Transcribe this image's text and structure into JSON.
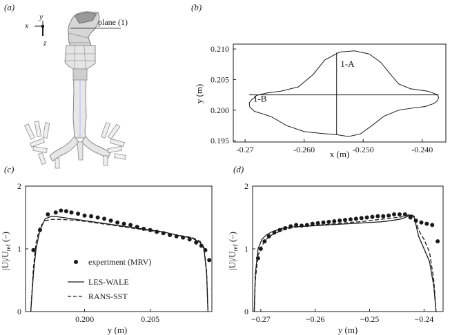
{
  "panel_labels": {
    "a": "(a)",
    "b": "(b)",
    "c": "(c)",
    "d": "(d)"
  },
  "panel_a": {
    "axis_x": "x",
    "axis_y": "y",
    "axis_z": "z",
    "plane_label": "plane (1)"
  },
  "panel_b": {
    "xlabel": "x (m)",
    "ylabel": "y (m)",
    "line_labels": [
      "1-A",
      "1-B"
    ],
    "x_ticks": [
      "-0.27",
      "-0.260",
      "-0.250",
      "-0.240"
    ],
    "y_ticks": [
      "0.210",
      "0.205",
      "0.200",
      "0.195"
    ]
  },
  "ylabel_cd": {
    "main": "|U|/U",
    "sub": "ref",
    "tail": " (–)"
  },
  "legend": {
    "experiment": "experiment (MRV)",
    "les": "LES-WALE",
    "rans": "RANS-SST"
  },
  "chart_data": [
    {
      "type": "line",
      "panel": "(b)",
      "title": "",
      "xlabel": "x (m)",
      "ylabel": "y (m)",
      "xlim": [
        -0.272,
        -0.236
      ],
      "ylim": [
        0.1948,
        0.2108
      ],
      "series": [
        {
          "name": "cross-section outline",
          "points": [
            [
              -0.2685,
              0.202
            ],
            [
              -0.2681,
              0.2024
            ],
            [
              -0.2664,
              0.2028
            ],
            [
              -0.264,
              0.2031
            ],
            [
              -0.261,
              0.2038
            ],
            [
              -0.2585,
              0.2058
            ],
            [
              -0.2565,
              0.2082
            ],
            [
              -0.254,
              0.2095
            ],
            [
              -0.2515,
              0.2097
            ],
            [
              -0.249,
              0.2092
            ],
            [
              -0.247,
              0.2078
            ],
            [
              -0.2455,
              0.206
            ],
            [
              -0.244,
              0.2043
            ],
            [
              -0.242,
              0.2035
            ],
            [
              -0.239,
              0.2031
            ],
            [
              -0.2376,
              0.2026
            ],
            [
              -0.2372,
              0.2021
            ],
            [
              -0.2374,
              0.2016
            ],
            [
              -0.238,
              0.2011
            ],
            [
              -0.2395,
              0.2006
            ],
            [
              -0.242,
              0.2003
            ],
            [
              -0.244,
              0.2
            ],
            [
              -0.2465,
              0.199
            ],
            [
              -0.2485,
              0.1975
            ],
            [
              -0.2505,
              0.1961
            ],
            [
              -0.2525,
              0.1957
            ],
            [
              -0.2545,
              0.196
            ],
            [
              -0.257,
              0.1962
            ],
            [
              -0.26,
              0.1965
            ],
            [
              -0.263,
              0.1975
            ],
            [
              -0.2655,
              0.1989
            ],
            [
              -0.267,
              0.1994
            ],
            [
              -0.2684,
              0.1998
            ],
            [
              -0.2692,
              0.2005
            ],
            [
              -0.2693,
              0.2012
            ],
            [
              -0.2689,
              0.2017
            ],
            [
              -0.2685,
              0.202
            ]
          ]
        },
        {
          "name": "line 1-A",
          "points": [
            [
              -0.2545,
              0.196
            ],
            [
              -0.2545,
              0.2094
            ]
          ]
        },
        {
          "name": "line 1-B",
          "points": [
            [
              -0.2693,
              0.2025
            ],
            [
              -0.2372,
              0.2025
            ]
          ]
        }
      ],
      "x_ticks": [
        -0.27,
        -0.26,
        -0.25,
        -0.24
      ],
      "y_ticks": [
        0.21,
        0.205,
        0.2,
        0.195
      ]
    },
    {
      "type": "line",
      "panel": "(c)",
      "title": "",
      "xlabel": "y (m)",
      "ylabel": "|U|/U_ref (–)",
      "xlim": [
        0.1955,
        0.2097
      ],
      "ylim": [
        0,
        2
      ],
      "x_ticks": [
        0.2,
        0.205
      ],
      "y_ticks": [
        0,
        1,
        2
      ],
      "legend_position": "bottom-left",
      "series": [
        {
          "name": "experiment (MRV)",
          "style": "dots",
          "points": [
            [
              0.1961,
              0.98
            ],
            [
              0.1966,
              1.3
            ],
            [
              0.1972,
              1.55
            ],
            [
              0.1978,
              1.58
            ],
            [
              0.1982,
              1.61
            ],
            [
              0.1986,
              1.6
            ],
            [
              0.199,
              1.58
            ],
            [
              0.1995,
              1.56
            ],
            [
              0.2,
              1.53
            ],
            [
              0.2005,
              1.52
            ],
            [
              0.201,
              1.5
            ],
            [
              0.2015,
              1.48
            ],
            [
              0.202,
              1.45
            ],
            [
              0.2025,
              1.42
            ],
            [
              0.203,
              1.4
            ],
            [
              0.2035,
              1.38
            ],
            [
              0.204,
              1.35
            ],
            [
              0.2045,
              1.32
            ],
            [
              0.205,
              1.3
            ],
            [
              0.2055,
              1.27
            ],
            [
              0.206,
              1.25
            ],
            [
              0.2065,
              1.22
            ],
            [
              0.207,
              1.2
            ],
            [
              0.2075,
              1.18
            ],
            [
              0.208,
              1.15
            ],
            [
              0.2085,
              1.1
            ],
            [
              0.2089,
              1.05
            ],
            [
              0.2092,
              0.98
            ],
            [
              0.2095,
              0.82
            ]
          ]
        },
        {
          "name": "LES-WALE",
          "style": "solid",
          "points": [
            [
              0.1959,
              0
            ],
            [
              0.1961,
              0.6
            ],
            [
              0.1963,
              1.0
            ],
            [
              0.1966,
              1.3
            ],
            [
              0.197,
              1.48
            ],
            [
              0.1975,
              1.52
            ],
            [
              0.198,
              1.51
            ],
            [
              0.199,
              1.48
            ],
            [
              0.2,
              1.45
            ],
            [
              0.201,
              1.42
            ],
            [
              0.202,
              1.39
            ],
            [
              0.203,
              1.36
            ],
            [
              0.204,
              1.33
            ],
            [
              0.205,
              1.3
            ],
            [
              0.206,
              1.27
            ],
            [
              0.207,
              1.22
            ],
            [
              0.2082,
              1.17
            ],
            [
              0.2088,
              1.1
            ],
            [
              0.2091,
              1.0
            ],
            [
              0.2093,
              0.6
            ],
            [
              0.2094,
              0
            ]
          ]
        },
        {
          "name": "RANS-SST",
          "style": "dashed",
          "points": [
            [
              0.1959,
              0
            ],
            [
              0.1961,
              0.7
            ],
            [
              0.1963,
              1.1
            ],
            [
              0.1966,
              1.35
            ],
            [
              0.197,
              1.45
            ],
            [
              0.1975,
              1.47
            ],
            [
              0.198,
              1.47
            ],
            [
              0.199,
              1.46
            ],
            [
              0.2,
              1.44
            ],
            [
              0.201,
              1.41
            ],
            [
              0.202,
              1.38
            ],
            [
              0.203,
              1.35
            ],
            [
              0.204,
              1.32
            ],
            [
              0.205,
              1.29
            ],
            [
              0.206,
              1.26
            ],
            [
              0.207,
              1.22
            ],
            [
              0.2082,
              1.18
            ],
            [
              0.2088,
              1.12
            ],
            [
              0.2091,
              1.02
            ],
            [
              0.2093,
              0.65
            ],
            [
              0.2094,
              0
            ]
          ]
        }
      ]
    },
    {
      "type": "line",
      "panel": "(d)",
      "title": "",
      "xlabel": "y (m)",
      "ylabel": "|U|/U_ref (–)",
      "xlim": [
        -0.2715,
        -0.2365
      ],
      "ylim": [
        0,
        2
      ],
      "x_ticks": [
        -0.27,
        -0.26,
        -0.25,
        -0.24
      ],
      "y_ticks": [
        0,
        1,
        2
      ],
      "series": [
        {
          "name": "experiment (MRV)",
          "style": "dots",
          "points": [
            [
              -0.2705,
              0.85
            ],
            [
              -0.27,
              1.0
            ],
            [
              -0.2693,
              1.12
            ],
            [
              -0.2685,
              1.2
            ],
            [
              -0.2675,
              1.26
            ],
            [
              -0.2665,
              1.3
            ],
            [
              -0.2655,
              1.33
            ],
            [
              -0.2645,
              1.36
            ],
            [
              -0.2635,
              1.38
            ],
            [
              -0.2625,
              1.37
            ],
            [
              -0.2615,
              1.38
            ],
            [
              -0.2605,
              1.4
            ],
            [
              -0.2595,
              1.41
            ],
            [
              -0.2585,
              1.42
            ],
            [
              -0.2575,
              1.43
            ],
            [
              -0.2565,
              1.44
            ],
            [
              -0.2555,
              1.45
            ],
            [
              -0.2545,
              1.46
            ],
            [
              -0.2535,
              1.47
            ],
            [
              -0.2525,
              1.48
            ],
            [
              -0.2515,
              1.49
            ],
            [
              -0.2505,
              1.5
            ],
            [
              -0.2495,
              1.51
            ],
            [
              -0.2485,
              1.52
            ],
            [
              -0.2475,
              1.52
            ],
            [
              -0.2465,
              1.53
            ],
            [
              -0.2455,
              1.55
            ],
            [
              -0.2445,
              1.55
            ],
            [
              -0.2435,
              1.55
            ],
            [
              -0.2425,
              1.5
            ],
            [
              -0.2415,
              1.45
            ],
            [
              -0.2405,
              1.42
            ],
            [
              -0.2395,
              1.4
            ],
            [
              -0.2385,
              1.38
            ],
            [
              -0.2375,
              1.12
            ]
          ]
        },
        {
          "name": "LES-WALE",
          "style": "solid",
          "points": [
            [
              -0.2712,
              0
            ],
            [
              -0.271,
              0.6
            ],
            [
              -0.2705,
              1.0
            ],
            [
              -0.2698,
              1.15
            ],
            [
              -0.269,
              1.22
            ],
            [
              -0.268,
              1.27
            ],
            [
              -0.266,
              1.33
            ],
            [
              -0.264,
              1.35
            ],
            [
              -0.262,
              1.36
            ],
            [
              -0.26,
              1.37
            ],
            [
              -0.258,
              1.38
            ],
            [
              -0.256,
              1.39
            ],
            [
              -0.254,
              1.4
            ],
            [
              -0.252,
              1.41
            ],
            [
              -0.25,
              1.42
            ],
            [
              -0.248,
              1.43
            ],
            [
              -0.246,
              1.45
            ],
            [
              -0.244,
              1.48
            ],
            [
              -0.2425,
              1.54
            ],
            [
              -0.2418,
              1.5
            ],
            [
              -0.241,
              1.2
            ],
            [
              -0.24,
              1.0
            ],
            [
              -0.239,
              0.8
            ],
            [
              -0.2382,
              0.4
            ],
            [
              -0.2378,
              0
            ]
          ]
        },
        {
          "name": "RANS-SST",
          "style": "dashed",
          "points": [
            [
              -0.2712,
              0
            ],
            [
              -0.271,
              0.5
            ],
            [
              -0.2705,
              0.9
            ],
            [
              -0.2698,
              1.05
            ],
            [
              -0.269,
              1.15
            ],
            [
              -0.268,
              1.22
            ],
            [
              -0.266,
              1.3
            ],
            [
              -0.264,
              1.34
            ],
            [
              -0.262,
              1.36
            ],
            [
              -0.26,
              1.37
            ],
            [
              -0.258,
              1.39
            ],
            [
              -0.256,
              1.4
            ],
            [
              -0.254,
              1.42
            ],
            [
              -0.252,
              1.43
            ],
            [
              -0.25,
              1.45
            ],
            [
              -0.248,
              1.47
            ],
            [
              -0.246,
              1.49
            ],
            [
              -0.244,
              1.51
            ],
            [
              -0.2425,
              1.55
            ],
            [
              -0.2418,
              1.52
            ],
            [
              -0.241,
              1.3
            ],
            [
              -0.24,
              1.15
            ],
            [
              -0.239,
              0.95
            ],
            [
              -0.2382,
              0.5
            ],
            [
              -0.2378,
              0
            ]
          ]
        }
      ]
    }
  ]
}
